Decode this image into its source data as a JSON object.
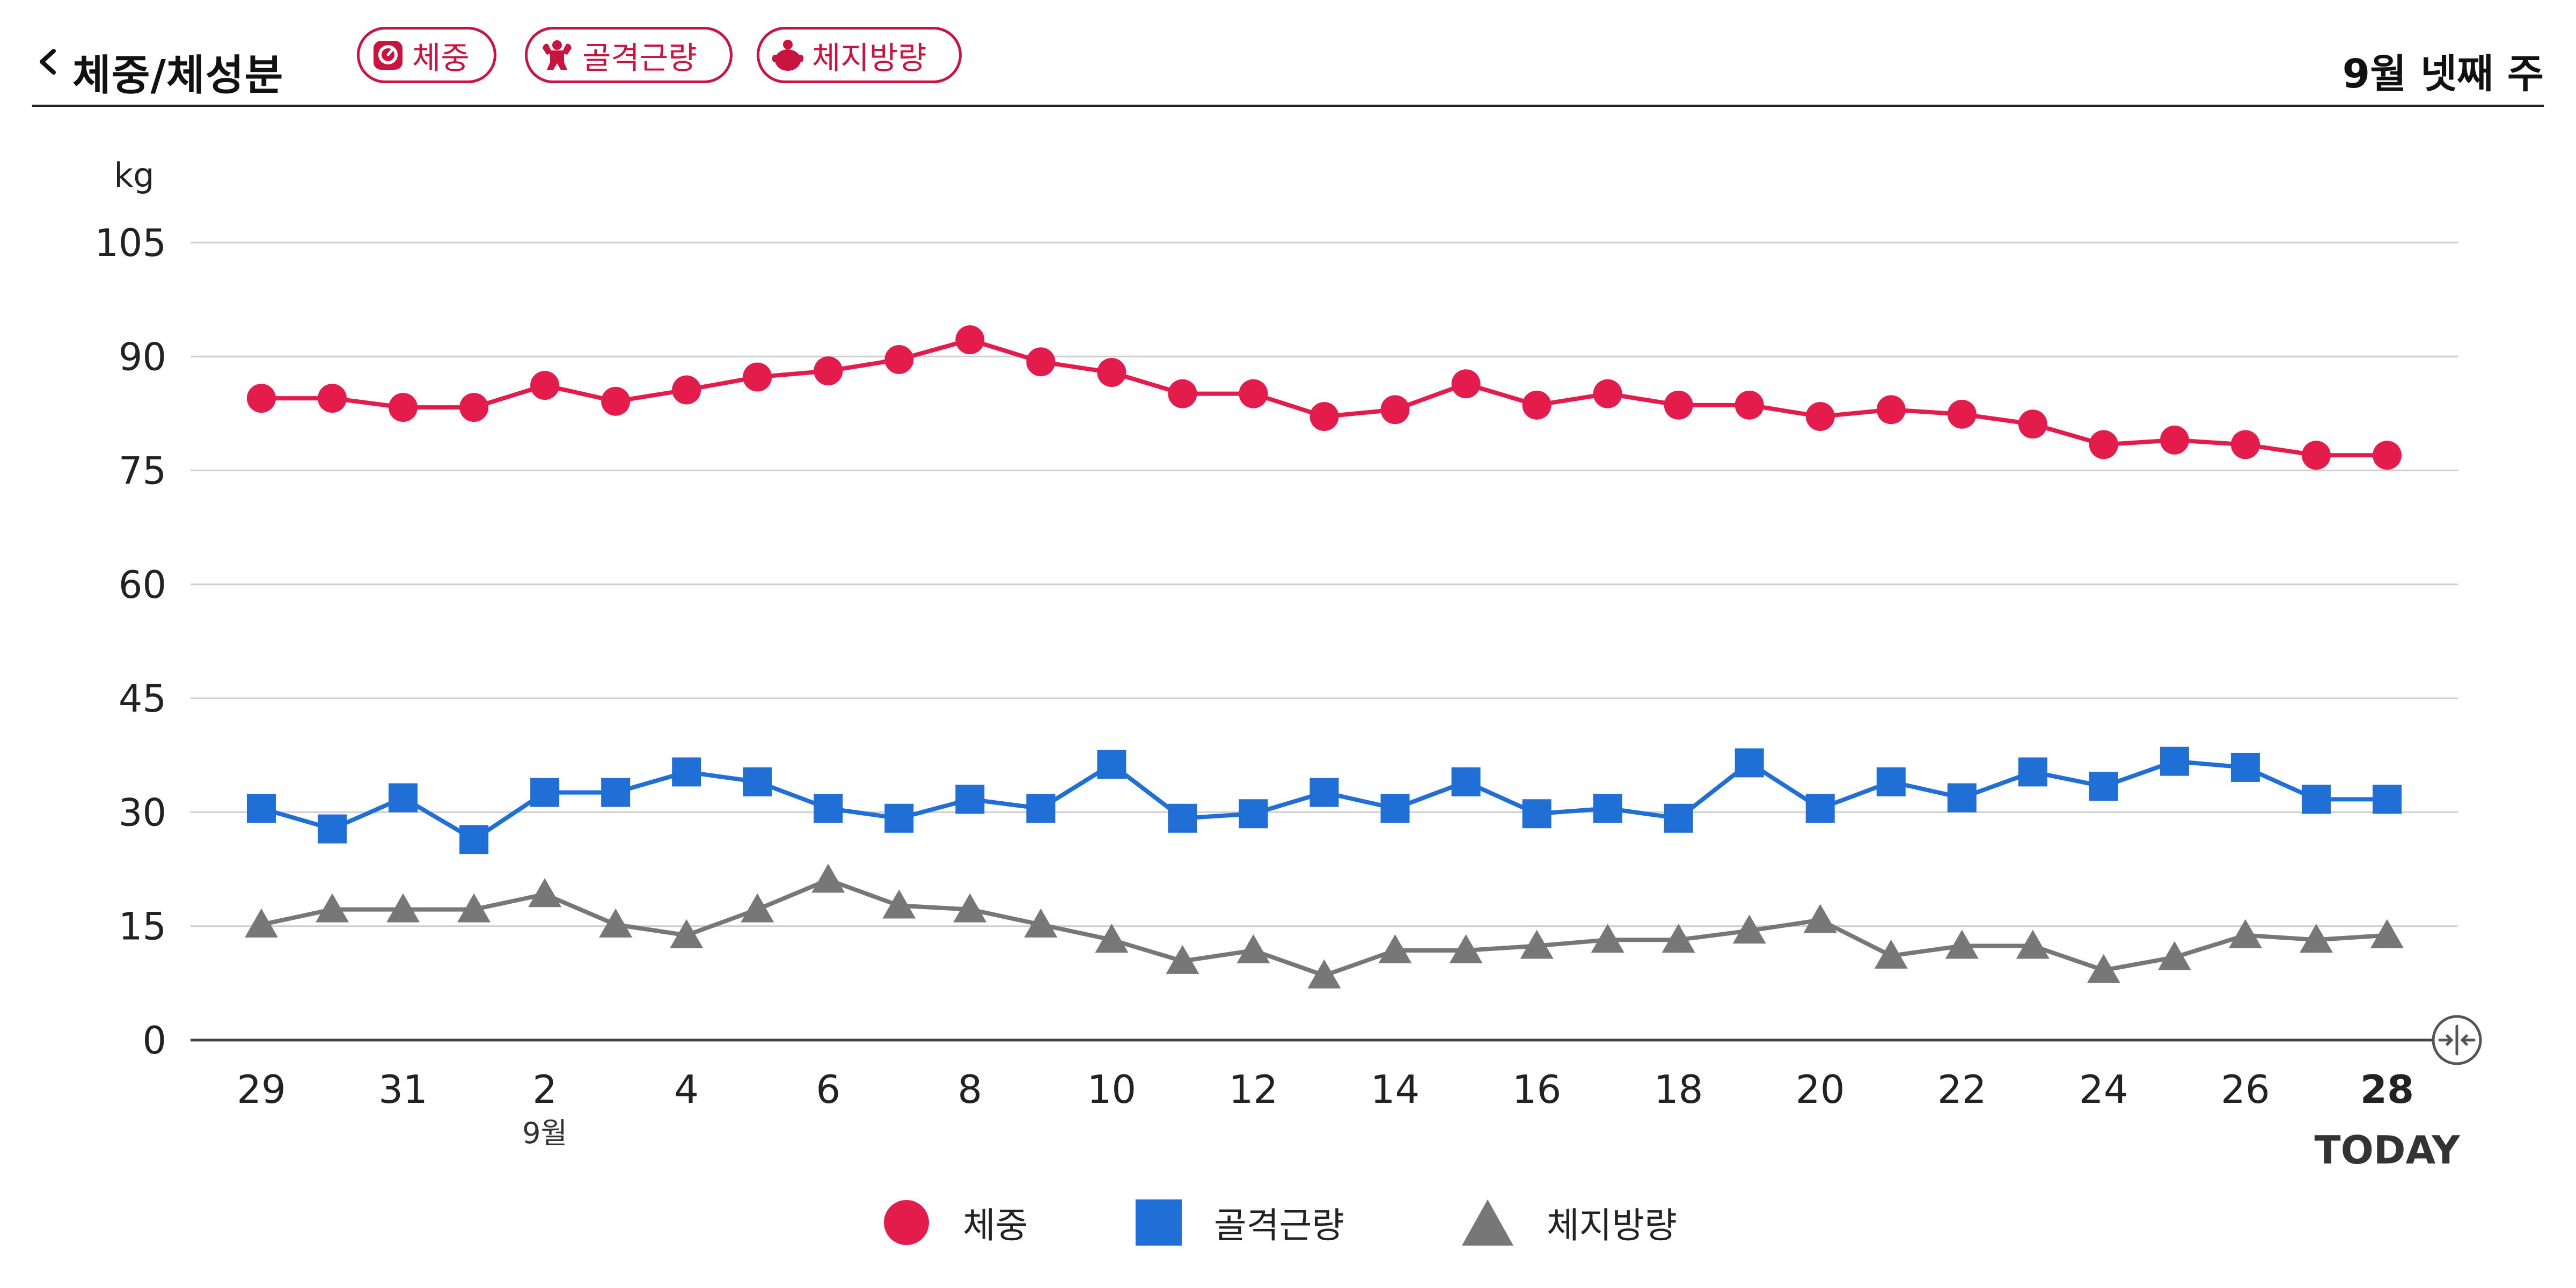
{
  "header": {
    "title": "체중/체성분",
    "chips": [
      {
        "label": "체중",
        "icon": "scale-icon"
      },
      {
        "label": "골격근량",
        "icon": "muscle-icon"
      },
      {
        "label": "체지방량",
        "icon": "fat-body-icon"
      }
    ],
    "week": "9월 넷째 주"
  },
  "colors": {
    "weight": "#e31c4b",
    "muscle": "#1f6fd6",
    "fat": "#777777",
    "accent": "#c8143f"
  },
  "chart_data": {
    "type": "line",
    "ylabel": "kg",
    "ylim": [
      0,
      105
    ],
    "yticks": [
      0,
      15,
      30,
      45,
      60,
      75,
      90,
      105
    ],
    "grid": true,
    "x": [
      "8/29",
      "8/30",
      "8/31",
      "9/1",
      "9/2",
      "9/3",
      "9/4",
      "9/5",
      "9/6",
      "9/7",
      "9/8",
      "9/9",
      "9/10",
      "9/11",
      "9/12",
      "9/13",
      "9/14",
      "9/15",
      "9/16",
      "9/17",
      "9/18",
      "9/19",
      "9/20",
      "9/21",
      "9/22",
      "9/23",
      "9/24",
      "9/25",
      "9/26",
      "9/27",
      "9/28"
    ],
    "xtick_labels": [
      {
        "index": 0,
        "label": "29"
      },
      {
        "index": 2,
        "label": "31"
      },
      {
        "index": 4,
        "label": "2",
        "sub": "9월"
      },
      {
        "index": 6,
        "label": "4"
      },
      {
        "index": 8,
        "label": "6"
      },
      {
        "index": 10,
        "label": "8"
      },
      {
        "index": 12,
        "label": "10"
      },
      {
        "index": 14,
        "label": "12"
      },
      {
        "index": 16,
        "label": "14"
      },
      {
        "index": 18,
        "label": "16"
      },
      {
        "index": 20,
        "label": "18"
      },
      {
        "index": 22,
        "label": "20"
      },
      {
        "index": 24,
        "label": "22"
      },
      {
        "index": 26,
        "label": "24"
      },
      {
        "index": 28,
        "label": "26"
      },
      {
        "index": 30,
        "label": "28",
        "sub": "TODAY",
        "bold": true
      }
    ],
    "series": [
      {
        "name": "체중",
        "marker": "circle",
        "color": "#e31c4b",
        "values": [
          84.5,
          84.5,
          83.3,
          83.3,
          86.2,
          84.1,
          85.6,
          87.3,
          88.1,
          89.6,
          92.2,
          89.3,
          87.9,
          85.1,
          85.1,
          82.1,
          83.0,
          86.4,
          83.6,
          85.1,
          83.6,
          83.6,
          82.1,
          83.0,
          82.4,
          81.1,
          78.4,
          79.0,
          78.4,
          77.0,
          77.0
        ]
      },
      {
        "name": "골격근량",
        "marker": "square",
        "color": "#1f6fd6",
        "values": [
          30.5,
          27.8,
          31.9,
          26.4,
          32.6,
          32.6,
          35.3,
          34.0,
          30.5,
          29.2,
          31.7,
          30.5,
          36.3,
          29.2,
          29.8,
          32.6,
          30.5,
          34.0,
          29.8,
          30.5,
          29.2,
          36.5,
          30.5,
          34.0,
          31.9,
          35.3,
          33.4,
          36.7,
          35.9,
          31.7,
          31.7
        ]
      },
      {
        "name": "체지방량",
        "marker": "triangle",
        "color": "#777777",
        "values": [
          15.2,
          17.2,
          17.2,
          17.2,
          19.2,
          15.2,
          13.8,
          17.2,
          21.1,
          17.7,
          17.2,
          15.2,
          13.2,
          10.4,
          11.8,
          8.5,
          11.8,
          11.8,
          12.4,
          13.2,
          13.2,
          14.4,
          15.8,
          11.1,
          12.4,
          12.4,
          9.2,
          10.9,
          13.8,
          13.2,
          13.8
        ]
      }
    ]
  }
}
